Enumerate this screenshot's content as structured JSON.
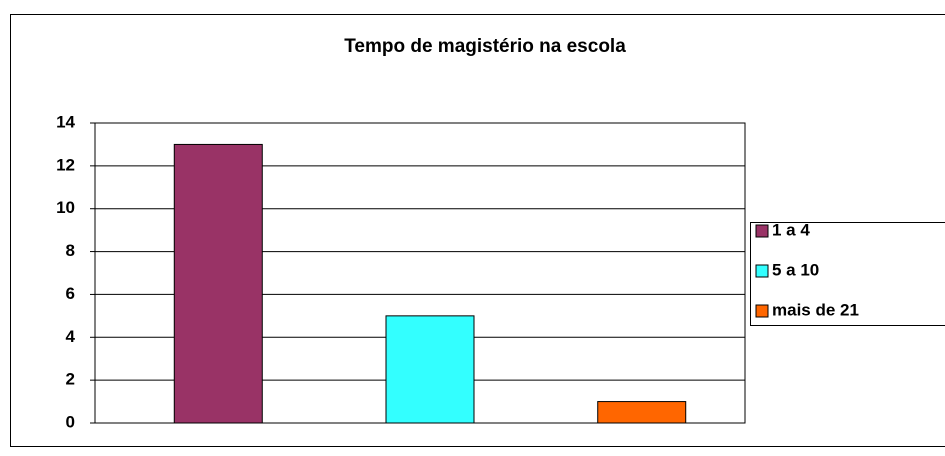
{
  "chart_data": {
    "type": "bar",
    "title": "Tempo de magistério na escola",
    "categories": [
      null
    ],
    "series": [
      {
        "name": "1 a 4",
        "color": "#993366",
        "values": [
          13
        ]
      },
      {
        "name": "5 a 10",
        "color": "#33ffff",
        "values": [
          5
        ]
      },
      {
        "name": "mais de 21",
        "color": "#ff6600",
        "values": [
          1
        ]
      }
    ],
    "ylim": [
      0,
      14
    ],
    "yticks": [
      0,
      2,
      4,
      6,
      8,
      10,
      12,
      14
    ],
    "grid": true,
    "legend": "right"
  }
}
